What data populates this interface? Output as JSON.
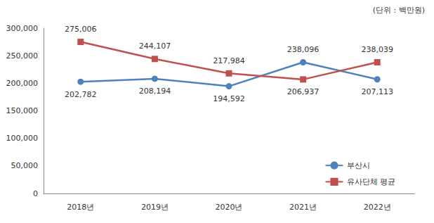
{
  "chart_data": {
    "type": "line",
    "subtitle": "(단위 : 백만원)",
    "categories": [
      "2018년",
      "2019년",
      "2020년",
      "2021년",
      "2022년"
    ],
    "series": [
      {
        "name": "부산시",
        "color": "#4F81BD",
        "marker": "circle",
        "line_style": "solid",
        "values": [
          202782,
          208194,
          194592,
          238096,
          207113
        ],
        "value_labels": [
          "202,782",
          "208,194",
          "194,592",
          "238,096",
          "207,113"
        ]
      },
      {
        "name": "유사단체 평균",
        "color": "#C0504D",
        "marker": "square",
        "line_style": "solid",
        "values": [
          275006,
          244107,
          217984,
          206937,
          238039
        ],
        "value_labels": [
          "275,006",
          "244,107",
          "217,984",
          "206,937",
          "238,039"
        ]
      }
    ],
    "ylim": [
      0,
      300000
    ],
    "yticks": [
      0,
      {
        "value": 50000,
        "label": "50,000"
      },
      {
        "value": 100000,
        "label": "100,000"
      },
      {
        "value": 150000,
        "label": "150,000"
      },
      {
        "value": 200000,
        "label": "200,000"
      },
      {
        "value": 250000,
        "label": "250,000"
      },
      {
        "value": 300000,
        "label": "300,000"
      }
    ],
    "grid": false,
    "legend": "lower right",
    "data_labels": true
  }
}
